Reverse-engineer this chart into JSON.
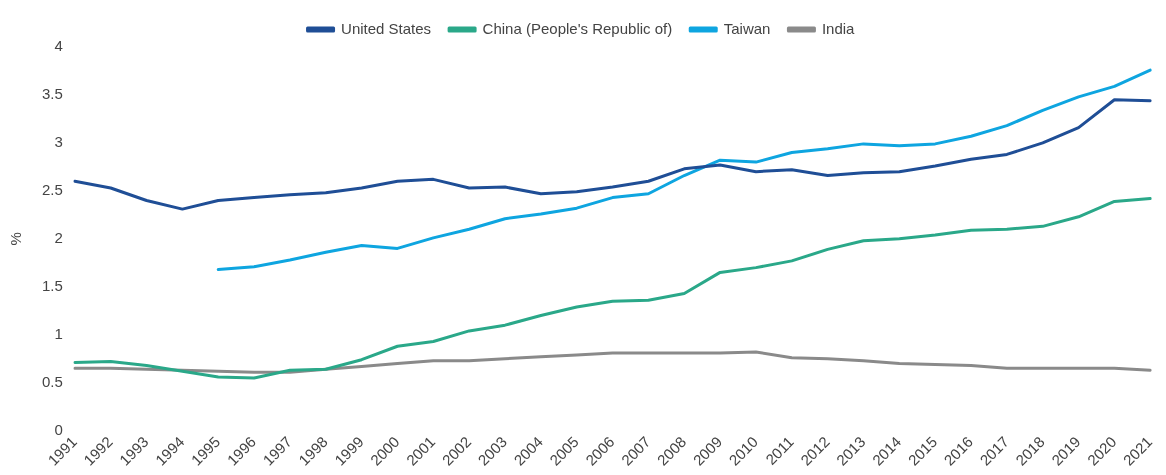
{
  "chart_data": {
    "type": "line",
    "ylabel": "%",
    "categories": [
      "1991",
      "1992",
      "1993",
      "1994",
      "1995",
      "1996",
      "1997",
      "1998",
      "1999",
      "2000",
      "2001",
      "2002",
      "2003",
      "2004",
      "2005",
      "2006",
      "2007",
      "2008",
      "2009",
      "2010",
      "2011",
      "2012",
      "2013",
      "2014",
      "2015",
      "2016",
      "2017",
      "2018",
      "2019",
      "2020",
      "2021"
    ],
    "ylim": [
      0,
      4
    ],
    "yticks": [
      0,
      0.5,
      1,
      1.5,
      2,
      2.5,
      3,
      3.5,
      4
    ],
    "grid": false,
    "legend": "top",
    "marker": "none",
    "line_style": "solid",
    "series": [
      {
        "name": "United States",
        "color": "#1f4e96",
        "values": [
          2.6,
          2.53,
          2.4,
          2.31,
          2.4,
          2.43,
          2.46,
          2.48,
          2.53,
          2.6,
          2.62,
          2.53,
          2.54,
          2.47,
          2.49,
          2.54,
          2.6,
          2.73,
          2.77,
          2.7,
          2.72,
          2.66,
          2.69,
          2.7,
          2.76,
          2.83,
          2.88,
          3.0,
          3.16,
          3.45,
          3.44
        ]
      },
      {
        "name": "China (People's Republic of)",
        "color": "#2aa889",
        "values": [
          0.71,
          0.72,
          0.68,
          0.62,
          0.56,
          0.55,
          0.63,
          0.64,
          0.74,
          0.88,
          0.93,
          1.04,
          1.1,
          1.2,
          1.29,
          1.35,
          1.36,
          1.43,
          1.65,
          1.7,
          1.77,
          1.89,
          1.98,
          2.0,
          2.04,
          2.09,
          2.1,
          2.13,
          2.23,
          2.39,
          2.42
        ]
      },
      {
        "name": "Taiwan",
        "color": "#0ea5e0",
        "values": [
          null,
          null,
          null,
          null,
          1.68,
          1.71,
          1.78,
          1.86,
          1.93,
          1.9,
          2.01,
          2.1,
          2.21,
          2.26,
          2.32,
          2.43,
          2.47,
          2.66,
          2.82,
          2.8,
          2.9,
          2.94,
          2.99,
          2.97,
          2.99,
          3.07,
          3.18,
          3.34,
          3.48,
          3.59,
          3.76
        ]
      },
      {
        "name": "India",
        "color": "#8a8a8a",
        "values": [
          0.65,
          0.65,
          0.64,
          0.63,
          0.62,
          0.61,
          0.61,
          0.64,
          0.67,
          0.7,
          0.73,
          0.73,
          0.75,
          0.77,
          0.79,
          0.81,
          0.81,
          0.81,
          0.81,
          0.82,
          0.76,
          0.75,
          0.73,
          0.7,
          0.69,
          0.68,
          0.65,
          0.65,
          0.65,
          0.65,
          0.63
        ]
      }
    ]
  }
}
